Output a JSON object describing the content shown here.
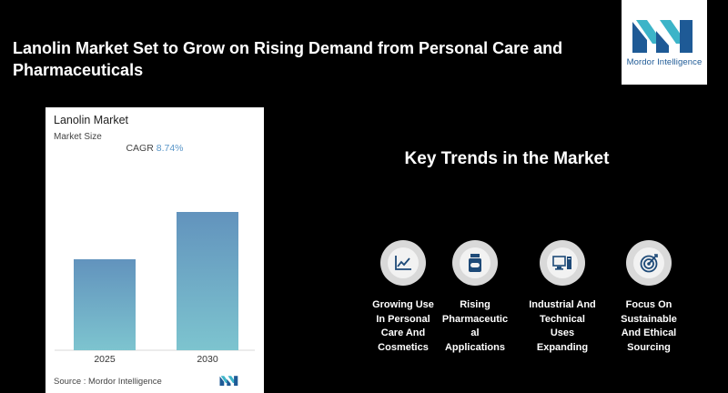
{
  "headline": "Lanolin Market Set to Grow on Rising Demand from Personal Care and Pharmaceuticals",
  "logo": {
    "text": "Mordor Intelligence",
    "colors": {
      "dark": "#1e5a96",
      "light": "#3cb4c8"
    }
  },
  "chart_data": {
    "type": "bar",
    "title": "Lanolin Market",
    "subtitle": "Market Size",
    "cagr_label": "CAGR",
    "cagr_value": "8.74%",
    "categories": [
      "2025",
      "2030"
    ],
    "values": [
      1.0,
      1.52
    ],
    "ylim": [
      0,
      1.6
    ],
    "bar_gradient": [
      "#6293bd",
      "#7dc4cf"
    ],
    "source": "Source : Mordor Intelligence"
  },
  "trends": {
    "title": "Key Trends in the Market",
    "items": [
      {
        "label": "Growing Use\nIn Personal\nCare And\nCosmetics",
        "icon": "line-chart-icon"
      },
      {
        "label": "Rising\nPharmaceutic\nal\nApplications",
        "icon": "medicine-bottle-icon"
      },
      {
        "label": "Industrial And\nTechnical\nUses\nExpanding",
        "icon": "computer-icon"
      },
      {
        "label": "Focus On\nSustainable\nAnd Ethical\nSourcing",
        "icon": "target-icon"
      }
    ]
  }
}
